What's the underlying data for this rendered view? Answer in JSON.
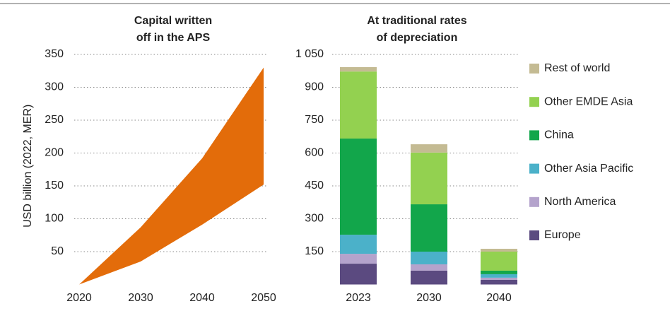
{
  "chart_data": [
    {
      "type": "area_range",
      "title": "Capital written off in the APS",
      "ylabel": "USD billion (2022, MER)",
      "x": [
        2020,
        2030,
        2040,
        2050
      ],
      "series": [
        {
          "values": [
            0,
            35,
            91,
            152
          ]
        },
        {
          "values": [
            0,
            87,
            192,
            330
          ]
        }
      ],
      "color": "#e36c0a",
      "xlim": [
        2020,
        2050
      ],
      "xticks": [
        2020,
        2030,
        2040,
        2050
      ],
      "ylim": [
        0,
        350
      ],
      "yticks": [
        50,
        100,
        150,
        200,
        250,
        300,
        350
      ],
      "grid": true
    },
    {
      "type": "stacked_bar",
      "title": "At traditional rates of depreciation",
      "categories": [
        "2023",
        "2030",
        "2040"
      ],
      "series": [
        {
          "name": "Europe",
          "color": "#5b4a80",
          "values": [
            95,
            63,
            21
          ]
        },
        {
          "name": "North America",
          "color": "#b4a3cc",
          "values": [
            45,
            29,
            10
          ]
        },
        {
          "name": "Other Asia Pacific",
          "color": "#4bb1c9",
          "values": [
            87,
            58,
            16
          ]
        },
        {
          "name": "China",
          "color": "#12a64b",
          "values": [
            439,
            216,
            16
          ]
        },
        {
          "name": "Other EMDE Asia",
          "color": "#93d150",
          "values": [
            306,
            236,
            87
          ]
        },
        {
          "name": "Rest of world",
          "color": "#c4bb93",
          "values": [
            20,
            38,
            13
          ]
        }
      ],
      "ylim": [
        0,
        1050
      ],
      "yticks": [
        150,
        300,
        450,
        600,
        750,
        900,
        {
          "value": 1050,
          "label": "1 050"
        }
      ],
      "grid": true,
      "legend": "right"
    }
  ]
}
